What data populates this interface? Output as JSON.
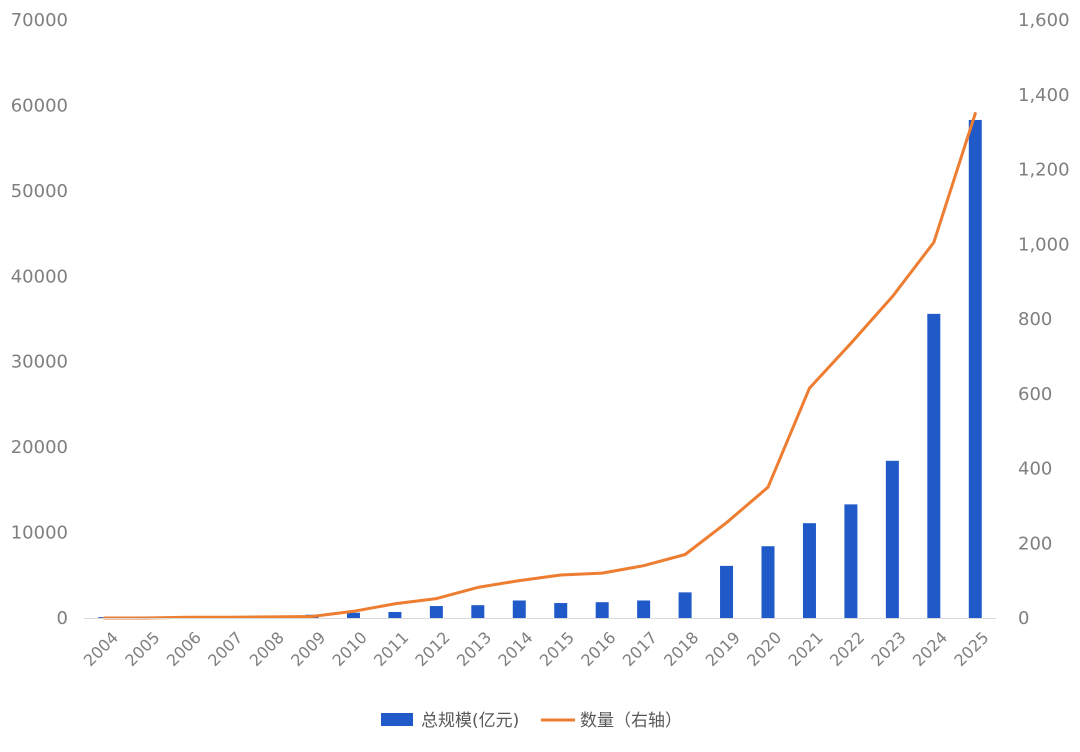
{
  "chart_data": {
    "type": "bar+line",
    "categories": [
      "2004",
      "2005",
      "2006",
      "2007",
      "2008",
      "2009",
      "2010",
      "2011",
      "2012",
      "2013",
      "2014",
      "2015",
      "2016",
      "2017",
      "2018",
      "2019",
      "2020",
      "2021",
      "2022",
      "2023",
      "2024",
      "2025"
    ],
    "series": [
      {
        "name": "总规模(亿元)",
        "type": "bar",
        "axis": "left",
        "color": "#1f5ac8",
        "values": [
          100,
          180,
          150,
          130,
          210,
          380,
          620,
          700,
          1400,
          1500,
          2050,
          1750,
          1850,
          2050,
          3000,
          6100,
          8400,
          11100,
          13300,
          18400,
          35600,
          58300
        ]
      },
      {
        "name": "数量（右轴）",
        "type": "line",
        "axis": "right",
        "color": "#ed7d31",
        "values": [
          0,
          0,
          2,
          2,
          3,
          4,
          18,
          38,
          52,
          82,
          100,
          115,
          120,
          140,
          170,
          255,
          350,
          615,
          735,
          860,
          1005,
          1350
        ]
      }
    ],
    "y_left": {
      "min": 0,
      "max": 70000,
      "ticks": [
        "0",
        "10000",
        "20000",
        "30000",
        "40000",
        "50000",
        "60000",
        "70000"
      ]
    },
    "y_right": {
      "min": 0,
      "max": 1600,
      "ticks": [
        "0",
        "200",
        "400",
        "600",
        "800",
        "1,000",
        "1,200",
        "1,400",
        "1,600"
      ]
    },
    "legend": {
      "position": "bottom-center",
      "items": [
        "总规模(亿元)",
        "数量（右轴）"
      ]
    },
    "grid": false
  }
}
